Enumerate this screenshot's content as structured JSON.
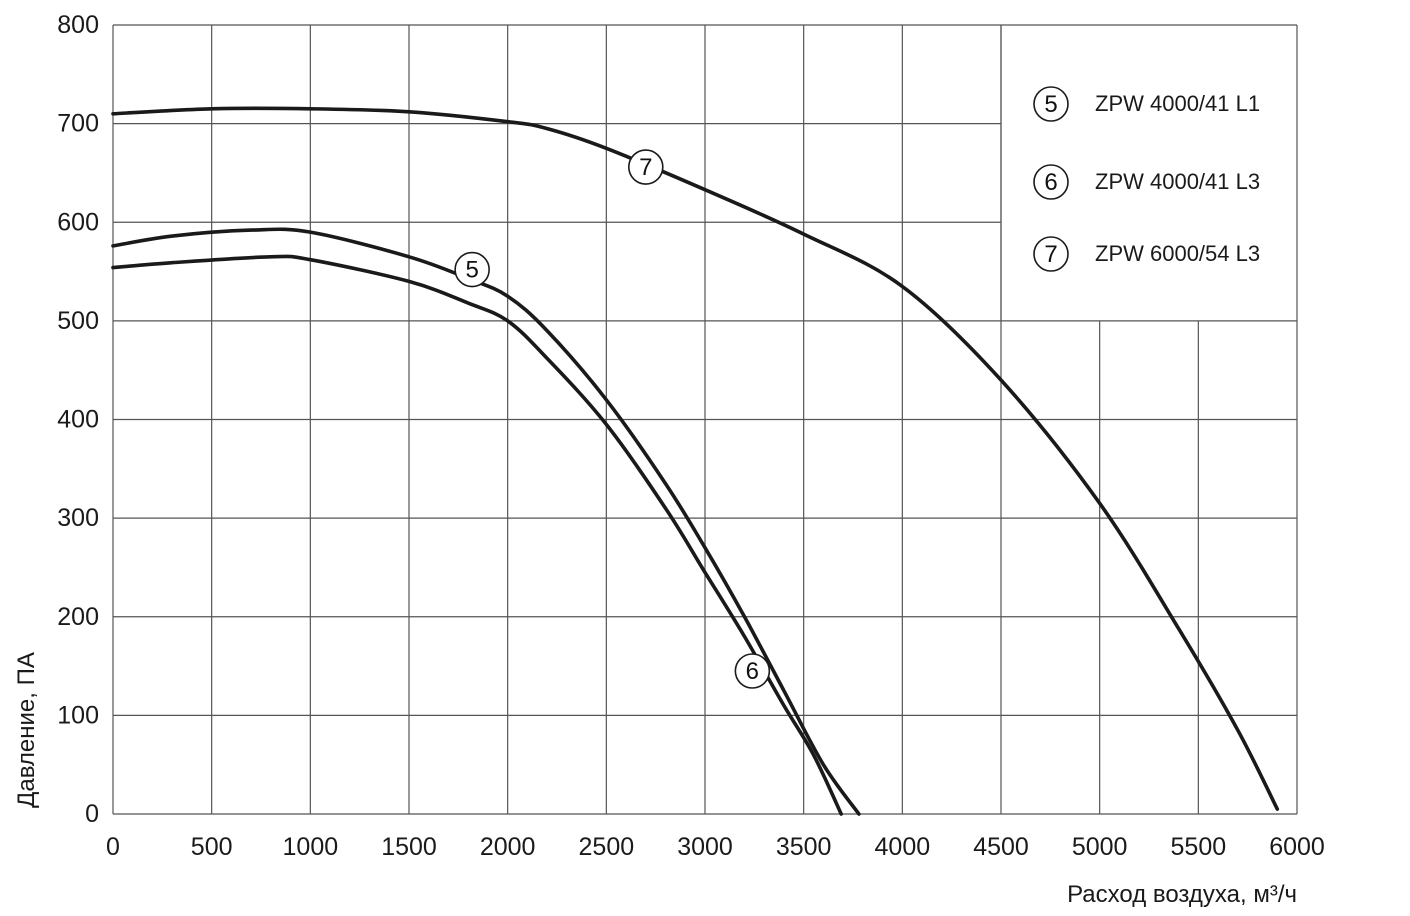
{
  "chart_data": {
    "type": "line",
    "xlabel": "Расход воздуха, м³/ч",
    "ylabel": "Давление, ПА",
    "xlim": [
      0,
      6000
    ],
    "ylim": [
      0,
      800
    ],
    "x_ticks": [
      "0",
      "500",
      "1000",
      "1500",
      "2000",
      "2500",
      "3000",
      "3500",
      "4000",
      "4500",
      "5000",
      "5500",
      "6000"
    ],
    "y_ticks": [
      "0",
      "100",
      "200",
      "300",
      "400",
      "500",
      "600",
      "700",
      "800"
    ],
    "grid": true,
    "legend_position": "top-right",
    "series": [
      {
        "id": "5",
        "name": "ZPW 4000/41 L1",
        "points": [
          [
            0,
            576
          ],
          [
            300,
            586
          ],
          [
            700,
            592
          ],
          [
            1000,
            590
          ],
          [
            1500,
            565
          ],
          [
            1800,
            543
          ],
          [
            2000,
            525
          ],
          [
            2200,
            490
          ],
          [
            2500,
            420
          ],
          [
            2800,
            335
          ],
          [
            3000,
            270
          ],
          [
            3200,
            200
          ],
          [
            3400,
            125
          ],
          [
            3600,
            50
          ],
          [
            3780,
            0
          ]
        ]
      },
      {
        "id": "6",
        "name": "ZPW 4000/41 L3",
        "points": [
          [
            0,
            554
          ],
          [
            300,
            559
          ],
          [
            800,
            565
          ],
          [
            1000,
            562
          ],
          [
            1500,
            540
          ],
          [
            1800,
            518
          ],
          [
            2000,
            500
          ],
          [
            2200,
            462
          ],
          [
            2500,
            395
          ],
          [
            2800,
            310
          ],
          [
            3000,
            245
          ],
          [
            3200,
            180
          ],
          [
            3400,
            110
          ],
          [
            3550,
            60
          ],
          [
            3690,
            0
          ]
        ]
      },
      {
        "id": "7",
        "name": "ZPW 6000/54 L3",
        "points": [
          [
            0,
            710
          ],
          [
            500,
            715
          ],
          [
            1000,
            715
          ],
          [
            1500,
            712
          ],
          [
            2000,
            702
          ],
          [
            2200,
            695
          ],
          [
            2500,
            675
          ],
          [
            3000,
            633
          ],
          [
            3500,
            588
          ],
          [
            4000,
            535
          ],
          [
            4500,
            440
          ],
          [
            5000,
            315
          ],
          [
            5400,
            188
          ],
          [
            5700,
            85
          ],
          [
            5900,
            5
          ]
        ]
      }
    ],
    "curve_markers": [
      {
        "label": "5",
        "x": 1820,
        "y": 552
      },
      {
        "label": "6",
        "x": 3240,
        "y": 145
      },
      {
        "label": "7",
        "x": 2700,
        "y": 656
      }
    ],
    "legend": [
      {
        "marker": "5",
        "label": "ZPW 4000/41 L1"
      },
      {
        "marker": "6",
        "label": "ZPW 4000/41 L3"
      },
      {
        "marker": "7",
        "label": "ZPW 6000/54 L3"
      }
    ]
  }
}
